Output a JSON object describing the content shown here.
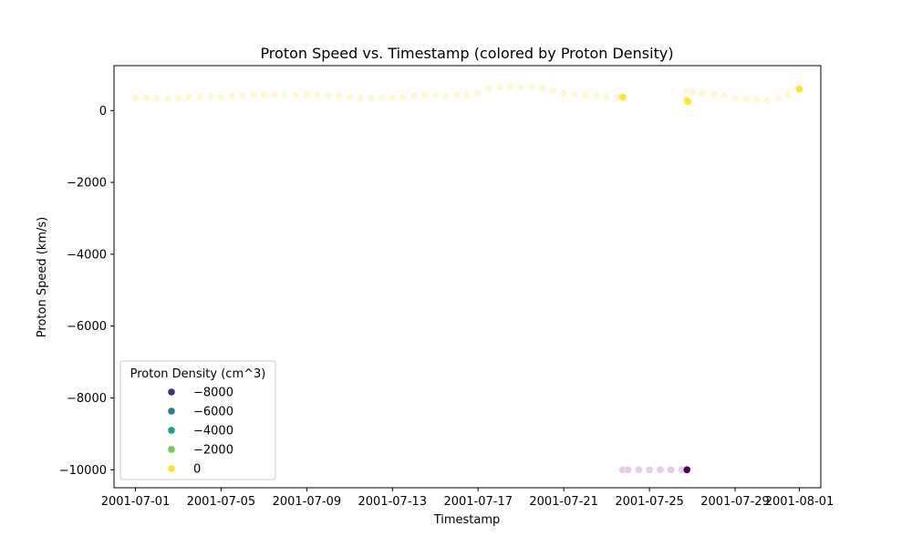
{
  "chart_data": {
    "type": "scatter",
    "title": "Proton Speed vs. Timestamp (colored by Proton Density)",
    "xlabel": "Timestamp",
    "ylabel": "Proton Speed (km/s)",
    "xlim": [
      "2001-06-30T00:00",
      "2001-08-02T00:00"
    ],
    "ylim": [
      -10500,
      1250
    ],
    "x_ticks": [
      "2001-07-01",
      "2001-07-05",
      "2001-07-09",
      "2001-07-13",
      "2001-07-17",
      "2001-07-21",
      "2001-07-25",
      "2001-07-29",
      "2001-08-01"
    ],
    "y_ticks": [
      0,
      -2000,
      -4000,
      -6000,
      -8000,
      -10000
    ],
    "y_tick_labels": [
      "0",
      "−2000",
      "−4000",
      "−6000",
      "−8000",
      "−10000"
    ],
    "grid": false,
    "color_palette": {
      "low": "#440154",
      "pale_yellow": "#fdf9d4",
      "yellow": "#fde725",
      "lavender": "#e2cfe3"
    },
    "legend": {
      "title": "Proton Density (cm^3)",
      "placement": "lower-left",
      "entries": [
        {
          "label": "−8000",
          "color": "#46327e"
        },
        {
          "label": "−6000",
          "color": "#277f8e"
        },
        {
          "label": "−4000",
          "color": "#1fa187"
        },
        {
          "label": "−2000",
          "color": "#6ece58"
        },
        {
          "label": "0",
          "color": "#fde725"
        }
      ]
    },
    "series": [
      {
        "points": [
          [
            "2001-07-01",
            350
          ],
          [
            "2001-07-01T12:00",
            360
          ],
          [
            "2001-07-02",
            340
          ],
          [
            "2001-07-02T12:00",
            320
          ],
          [
            "2001-07-03",
            340
          ],
          [
            "2001-07-03T12:00",
            380
          ],
          [
            "2001-07-04",
            380
          ],
          [
            "2001-07-04T12:00",
            390
          ],
          [
            "2001-07-05",
            370
          ],
          [
            "2001-07-05T12:00",
            400
          ],
          [
            "2001-07-06",
            420
          ],
          [
            "2001-07-06T12:00",
            440
          ],
          [
            "2001-07-07",
            430
          ],
          [
            "2001-07-07T12:00",
            450
          ],
          [
            "2001-07-08",
            440
          ],
          [
            "2001-07-08T12:00",
            430
          ],
          [
            "2001-07-09",
            440
          ],
          [
            "2001-07-09T12:00",
            430
          ],
          [
            "2001-07-10",
            410
          ],
          [
            "2001-07-10T12:00",
            400
          ],
          [
            "2001-07-11",
            370
          ],
          [
            "2001-07-11T12:00",
            340
          ],
          [
            "2001-07-12",
            350
          ],
          [
            "2001-07-12T12:00",
            360
          ],
          [
            "2001-07-13",
            360
          ],
          [
            "2001-07-13T12:00",
            370
          ],
          [
            "2001-07-14",
            400
          ],
          [
            "2001-07-14T12:00",
            430
          ],
          [
            "2001-07-15",
            410
          ],
          [
            "2001-07-15T12:00",
            400
          ],
          [
            "2001-07-16",
            420
          ],
          [
            "2001-07-16T12:00",
            430
          ],
          [
            "2001-07-17",
            500
          ],
          [
            "2001-07-17T12:00",
            600
          ],
          [
            "2001-07-18",
            650
          ],
          [
            "2001-07-18T12:00",
            680
          ],
          [
            "2001-07-19",
            640
          ],
          [
            "2001-07-19T12:00",
            650
          ],
          [
            "2001-07-20",
            630
          ],
          [
            "2001-07-20T12:00",
            560
          ],
          [
            "2001-07-21",
            480
          ],
          [
            "2001-07-21T12:00",
            450
          ],
          [
            "2001-07-22",
            430
          ],
          [
            "2001-07-22T12:00",
            400
          ],
          [
            "2001-07-23",
            380
          ],
          [
            "2001-07-23T12:00",
            370
          ],
          [
            "2001-07-26T18:00",
            540
          ],
          [
            "2001-07-27",
            520
          ],
          [
            "2001-07-27T12:00",
            480
          ],
          [
            "2001-07-28",
            440
          ],
          [
            "2001-07-28T12:00",
            400
          ],
          [
            "2001-07-29",
            360
          ],
          [
            "2001-07-29T12:00",
            320
          ],
          [
            "2001-07-30",
            300
          ],
          [
            "2001-07-30T12:00",
            290
          ],
          [
            "2001-07-31",
            330
          ],
          [
            "2001-07-31T12:00",
            450
          ],
          [
            "2001-08-01",
            580
          ]
        ],
        "color": "#fdf9d4"
      },
      {
        "points": [
          [
            "2001-07-23T18:00",
            370
          ],
          [
            "2001-07-26T18:00",
            280
          ],
          [
            "2001-07-26T19:00",
            250
          ],
          [
            "2001-08-01",
            600
          ]
        ],
        "color": "#fde725"
      },
      {
        "points": [
          [
            "2001-07-23T18:00",
            -10000
          ],
          [
            "2001-07-24",
            -10000
          ],
          [
            "2001-07-24T12:00",
            -10000
          ],
          [
            "2001-07-25",
            -10000
          ],
          [
            "2001-07-25T12:00",
            -10000
          ],
          [
            "2001-07-26",
            -10000
          ],
          [
            "2001-07-26T12:00",
            -10000
          ]
        ],
        "color": "#e2cfe3"
      },
      {
        "points": [
          [
            "2001-07-26T18:00",
            -10000
          ]
        ],
        "color": "#440154"
      }
    ]
  }
}
